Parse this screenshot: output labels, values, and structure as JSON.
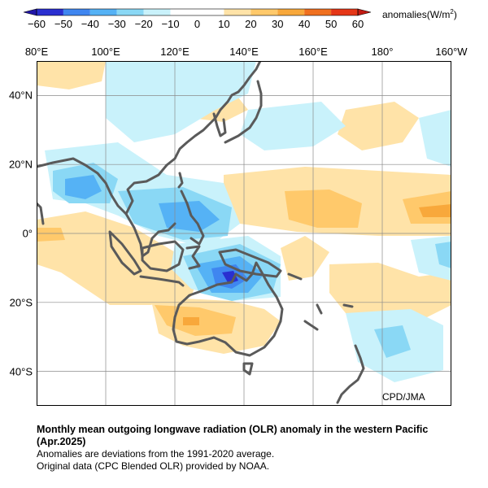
{
  "colorbar": {
    "ticks": [
      "−60",
      "−50",
      "−40",
      "−30",
      "−20",
      "−10",
      "0",
      "10",
      "20",
      "30",
      "40",
      "50",
      "60"
    ],
    "units_label": "anomalies(W/m",
    "units_sup": "2",
    "units_close": ")",
    "colors": [
      "#2a2fd0",
      "#3f86f0",
      "#55b2f5",
      "#8ad8f5",
      "#c9f2fb",
      "#ffffff",
      "#ffffff",
      "#ffe3a8",
      "#ffc96b",
      "#f8a83b",
      "#f0701f",
      "#e53617"
    ]
  },
  "map": {
    "lon_labels": [
      "80°E",
      "100°E",
      "120°E",
      "140°E",
      "160°E",
      "180°",
      "160°W"
    ],
    "lat_labels": [
      "40°N",
      "20°N",
      "0°",
      "20°S",
      "40°S"
    ],
    "extent": {
      "lon": [
        80,
        200
      ],
      "lat": [
        -50,
        50
      ]
    },
    "coastline_color": "#5a5a5a",
    "gridlines": true
  },
  "credit": "CPD/JMA",
  "caption": {
    "title": "Monthly mean outgoing longwave radiation (OLR) anomaly in the western Pacific (Apr.2025)",
    "line1": "Anomalies are deviations from the 1991-2020 average.",
    "line2": "Original data (CPC Blended OLR) provided by NOAA."
  }
}
